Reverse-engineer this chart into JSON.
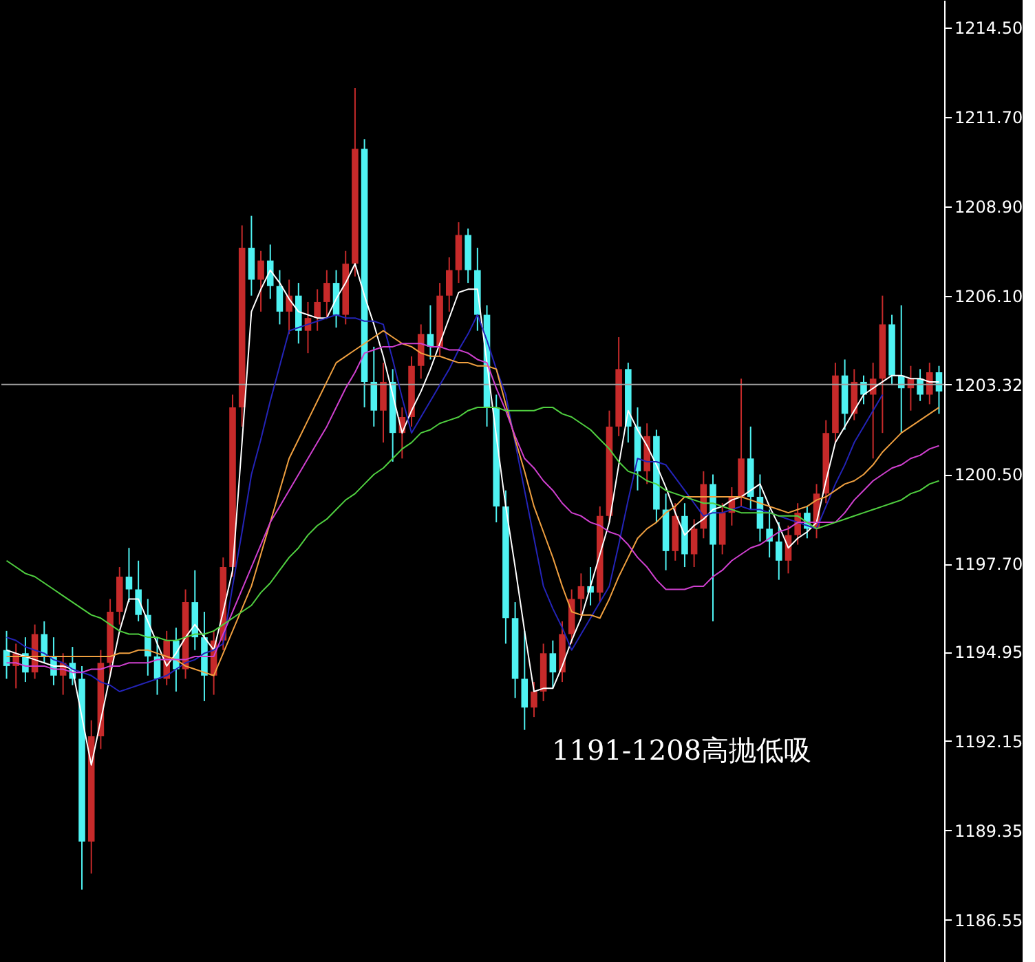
{
  "chart_data": {
    "type": "candlestick",
    "categories": [
      null,
      null,
      null,
      null,
      null,
      null,
      null,
      null,
      null,
      null,
      null,
      null,
      null,
      null,
      null,
      null,
      null,
      null,
      null,
      null,
      null,
      null,
      null,
      null,
      null,
      null,
      null,
      null,
      null,
      null,
      null,
      null,
      null,
      null,
      null,
      null,
      null,
      null,
      null,
      null,
      null,
      null,
      null,
      null,
      null,
      null,
      null,
      null,
      null,
      null,
      null,
      null,
      null,
      null,
      null,
      null,
      null,
      null,
      null,
      null,
      null,
      null,
      null,
      null,
      null,
      null,
      null,
      null,
      null,
      null,
      null,
      null,
      null,
      null,
      null,
      null,
      null,
      null,
      null,
      null,
      null,
      null,
      null,
      null,
      null,
      null,
      null,
      null,
      null,
      null,
      null,
      null,
      null,
      null,
      null,
      null,
      null,
      null,
      null,
      null
    ],
    "ohlc": [
      [
        1195.0,
        1195.6,
        1194.1,
        1194.5
      ],
      [
        1194.5,
        1195.2,
        1193.8,
        1194.9
      ],
      [
        1194.9,
        1195.4,
        1194.0,
        1194.3
      ],
      [
        1194.3,
        1195.8,
        1194.1,
        1195.5
      ],
      [
        1195.5,
        1195.9,
        1194.6,
        1194.8
      ],
      [
        1194.8,
        1195.4,
        1193.9,
        1194.2
      ],
      [
        1194.2,
        1194.9,
        1193.6,
        1194.6
      ],
      [
        1194.6,
        1195.1,
        1193.9,
        1194.1
      ],
      [
        1194.1,
        1194.5,
        1187.5,
        1189.0
      ],
      [
        1189.0,
        1192.8,
        1188.0,
        1192.3
      ],
      [
        1192.3,
        1195.0,
        1191.9,
        1194.6
      ],
      [
        1194.6,
        1196.6,
        1194.2,
        1196.2
      ],
      [
        1196.2,
        1197.6,
        1195.8,
        1197.3
      ],
      [
        1197.3,
        1198.2,
        1196.5,
        1196.9
      ],
      [
        1196.9,
        1197.8,
        1195.9,
        1196.1
      ],
      [
        1196.1,
        1196.6,
        1194.2,
        1194.8
      ],
      [
        1194.8,
        1195.4,
        1193.6,
        1194.1
      ],
      [
        1194.1,
        1195.6,
        1193.9,
        1195.3
      ],
      [
        1195.3,
        1195.7,
        1193.7,
        1194.4
      ],
      [
        1194.4,
        1196.9,
        1194.1,
        1196.5
      ],
      [
        1196.5,
        1197.5,
        1195.0,
        1195.4
      ],
      [
        1195.4,
        1196.2,
        1193.4,
        1194.2
      ],
      [
        1194.2,
        1195.6,
        1193.6,
        1195.3
      ],
      [
        1195.3,
        1197.9,
        1195.0,
        1197.6
      ],
      [
        1197.6,
        1203.0,
        1197.3,
        1202.6
      ],
      [
        1202.6,
        1208.3,
        1202.0,
        1207.6
      ],
      [
        1207.6,
        1208.6,
        1206.1,
        1206.6
      ],
      [
        1206.6,
        1207.5,
        1205.6,
        1207.2
      ],
      [
        1207.2,
        1207.7,
        1206.0,
        1206.4
      ],
      [
        1206.4,
        1206.9,
        1205.2,
        1205.6
      ],
      [
        1205.6,
        1206.6,
        1204.9,
        1206.1
      ],
      [
        1206.1,
        1206.5,
        1204.6,
        1205.0
      ],
      [
        1205.0,
        1205.9,
        1204.3,
        1205.4
      ],
      [
        1205.4,
        1206.3,
        1205.0,
        1205.9
      ],
      [
        1205.9,
        1206.9,
        1205.4,
        1206.5
      ],
      [
        1206.5,
        1206.9,
        1205.1,
        1205.5
      ],
      [
        1205.5,
        1207.5,
        1205.2,
        1207.1
      ],
      [
        1207.1,
        1212.6,
        1206.7,
        1210.7
      ],
      [
        1210.7,
        1211.0,
        1202.6,
        1203.4
      ],
      [
        1203.4,
        1204.5,
        1202.0,
        1202.5
      ],
      [
        1202.5,
        1204.0,
        1201.5,
        1203.4
      ],
      [
        1203.4,
        1203.8,
        1200.9,
        1201.8
      ],
      [
        1201.8,
        1202.6,
        1201.0,
        1202.3
      ],
      [
        1202.3,
        1204.2,
        1202.0,
        1203.9
      ],
      [
        1203.9,
        1205.2,
        1203.5,
        1204.9
      ],
      [
        1204.9,
        1205.8,
        1204.1,
        1204.5
      ],
      [
        1204.5,
        1206.5,
        1204.2,
        1206.1
      ],
      [
        1206.1,
        1207.3,
        1205.6,
        1206.9
      ],
      [
        1206.9,
        1208.4,
        1206.5,
        1208.0
      ],
      [
        1208.0,
        1208.2,
        1206.5,
        1206.9
      ],
      [
        1206.9,
        1207.6,
        1205.0,
        1205.5
      ],
      [
        1205.5,
        1205.8,
        1202.0,
        1202.6
      ],
      [
        1202.6,
        1203.0,
        1199.0,
        1199.5
      ],
      [
        1199.5,
        1200.0,
        1195.2,
        1196.0
      ],
      [
        1196.0,
        1196.5,
        1193.5,
        1194.1
      ],
      [
        1194.1,
        1195.6,
        1192.5,
        1193.2
      ],
      [
        1193.2,
        1194.0,
        1192.9,
        1193.7
      ],
      [
        1193.7,
        1195.2,
        1193.4,
        1194.9
      ],
      [
        1194.9,
        1195.3,
        1193.8,
        1194.3
      ],
      [
        1194.3,
        1195.9,
        1194.0,
        1195.5
      ],
      [
        1195.5,
        1196.9,
        1195.2,
        1196.6
      ],
      [
        1196.6,
        1197.4,
        1196.0,
        1197.0
      ],
      [
        1197.0,
        1197.6,
        1196.4,
        1196.8
      ],
      [
        1196.8,
        1199.5,
        1196.5,
        1199.2
      ],
      [
        1199.2,
        1202.5,
        1199.0,
        1202.0
      ],
      [
        1202.0,
        1204.8,
        1201.7,
        1203.8
      ],
      [
        1203.8,
        1204.0,
        1201.5,
        1202.0
      ],
      [
        1202.0,
        1202.6,
        1200.0,
        1200.6
      ],
      [
        1200.6,
        1202.1,
        1200.2,
        1201.7
      ],
      [
        1201.7,
        1201.9,
        1199.0,
        1199.4
      ],
      [
        1199.4,
        1199.9,
        1197.5,
        1198.1
      ],
      [
        1198.1,
        1199.6,
        1197.8,
        1199.2
      ],
      [
        1199.2,
        1199.6,
        1197.6,
        1198.0
      ],
      [
        1198.0,
        1199.1,
        1197.6,
        1198.8
      ],
      [
        1198.8,
        1200.6,
        1198.5,
        1200.2
      ],
      [
        1200.2,
        1200.5,
        1195.9,
        1198.3
      ],
      [
        1198.3,
        1199.6,
        1198.0,
        1199.3
      ],
      [
        1199.3,
        1200.1,
        1198.9,
        1199.8
      ],
      [
        1199.8,
        1203.5,
        1199.5,
        1201.0
      ],
      [
        1201.0,
        1202.0,
        1199.4,
        1199.8
      ],
      [
        1199.8,
        1200.5,
        1198.4,
        1198.8
      ],
      [
        1198.8,
        1199.4,
        1197.9,
        1198.4
      ],
      [
        1198.4,
        1199.0,
        1197.2,
        1197.8
      ],
      [
        1197.8,
        1198.9,
        1197.4,
        1198.6
      ],
      [
        1198.6,
        1199.6,
        1198.3,
        1199.3
      ],
      [
        1199.3,
        1199.5,
        1198.5,
        1198.8
      ],
      [
        1198.8,
        1200.2,
        1198.5,
        1199.9
      ],
      [
        1199.9,
        1202.2,
        1199.6,
        1201.8
      ],
      [
        1201.8,
        1204.0,
        1201.5,
        1203.6
      ],
      [
        1203.6,
        1204.1,
        1201.9,
        1202.4
      ],
      [
        1202.4,
        1203.8,
        1202.2,
        1203.4
      ],
      [
        1203.4,
        1203.6,
        1202.7,
        1203.0
      ],
      [
        1203.0,
        1204.0,
        1201.0,
        1203.5
      ],
      [
        1203.5,
        1206.1,
        1201.8,
        1205.2
      ],
      [
        1205.2,
        1205.5,
        1203.3,
        1203.6
      ],
      [
        1203.6,
        1205.8,
        1201.8,
        1203.2
      ],
      [
        1203.2,
        1203.9,
        1202.5,
        1203.5
      ],
      [
        1203.5,
        1203.8,
        1202.8,
        1203.0
      ],
      [
        1203.0,
        1204.0,
        1202.7,
        1203.7
      ],
      [
        1203.7,
        1203.9,
        1202.4,
        1203.1
      ]
    ],
    "colors": [
      "#4ff2f2",
      "#c62a2a",
      "#4ff2f2",
      "#c62a2a",
      "#4ff2f2",
      "#4ff2f2",
      "#c62a2a",
      "#4ff2f2",
      "#4ff2f2",
      "#c62a2a",
      "#c62a2a",
      "#c62a2a",
      "#c62a2a",
      "#4ff2f2",
      "#4ff2f2",
      "#4ff2f2",
      "#4ff2f2",
      "#c62a2a",
      "#4ff2f2",
      "#c62a2a",
      "#4ff2f2",
      "#4ff2f2",
      "#c62a2a",
      "#c62a2a",
      "#c62a2a",
      "#c62a2a",
      "#4ff2f2",
      "#c62a2a",
      "#4ff2f2",
      "#4ff2f2",
      "#c62a2a",
      "#4ff2f2",
      "#c62a2a",
      "#c62a2a",
      "#c62a2a",
      "#4ff2f2",
      "#c62a2a",
      "#c62a2a",
      "#4ff2f2",
      "#4ff2f2",
      "#c62a2a",
      "#4ff2f2",
      "#c62a2a",
      "#c62a2a",
      "#c62a2a",
      "#4ff2f2",
      "#c62a2a",
      "#c62a2a",
      "#c62a2a",
      "#4ff2f2",
      "#4ff2f2",
      "#4ff2f2",
      "#4ff2f2",
      "#4ff2f2",
      "#4ff2f2",
      "#4ff2f2",
      "#c62a2a",
      "#c62a2a",
      "#4ff2f2",
      "#c62a2a",
      "#c62a2a",
      "#c62a2a",
      "#4ff2f2",
      "#c62a2a",
      "#c62a2a",
      "#c62a2a",
      "#4ff2f2",
      "#4ff2f2",
      "#c62a2a",
      "#4ff2f2",
      "#4ff2f2",
      "#c62a2a",
      "#4ff2f2",
      "#c62a2a",
      "#c62a2a",
      "#4ff2f2",
      "#c62a2a",
      "#c62a2a",
      "#c62a2a",
      "#4ff2f2",
      "#4ff2f2",
      "#4ff2f2",
      "#4ff2f2",
      "#c62a2a",
      "#c62a2a",
      "#4ff2f2",
      "#c62a2a",
      "#c62a2a",
      "#c62a2a",
      "#4ff2f2",
      "#c62a2a",
      "#4ff2f2",
      "#c62a2a",
      "#c62a2a",
      "#4ff2f2",
      "#4ff2f2",
      "#c62a2a",
      "#4ff2f2",
      "#c62a2a",
      "#4ff2f2"
    ],
    "series": [
      {
        "type": "line",
        "color": "#ffffff",
        "values": [
          1195.0,
          1194.9,
          1194.8,
          1194.7,
          1194.6,
          1194.5,
          1194.5,
          1194.4,
          1192.9,
          1191.4,
          1192.8,
          1194.2,
          1195.6,
          1196.6,
          1196.6,
          1195.9,
          1195.2,
          1194.5,
          1194.9,
          1195.4,
          1195.8,
          1195.4,
          1195.0,
          1196.2,
          1197.5,
          1201.5,
          1205.6,
          1206.3,
          1206.9,
          1206.5,
          1206.0,
          1205.6,
          1205.5,
          1205.4,
          1205.4,
          1206.0,
          1206.5,
          1207.1,
          1206.1,
          1205.2,
          1204.2,
          1203.0,
          1201.8,
          1202.5,
          1203.1,
          1203.8,
          1204.6,
          1205.4,
          1206.2,
          1206.3,
          1206.3,
          1204.0,
          1201.7,
          1199.5,
          1197.6,
          1195.6,
          1193.7,
          1193.8,
          1193.8,
          1194.5,
          1195.3,
          1196.0,
          1197.0,
          1198.0,
          1199.0,
          1200.8,
          1202.5,
          1201.9,
          1201.4,
          1200.8,
          1200.1,
          1199.3,
          1198.6,
          1198.9,
          1199.1,
          1199.4,
          1199.5,
          1199.7,
          1199.8,
          1200.0,
          1200.2,
          1199.5,
          1198.9,
          1198.2,
          1198.5,
          1198.7,
          1199.0,
          1200.3,
          1201.5,
          1202.0,
          1202.5,
          1203.0,
          1203.2,
          1203.4,
          1203.6,
          1203.6,
          1203.5,
          1203.5,
          1203.4,
          1203.4
        ]
      },
      {
        "type": "line",
        "color": "#2424b8",
        "values": [
          1195.4,
          1195.3,
          1195.1,
          1195.0,
          1194.9,
          1194.7,
          1194.6,
          1194.4,
          1194.3,
          1194.2,
          1194.0,
          1193.9,
          1193.7,
          1193.8,
          1193.9,
          1194.0,
          1194.1,
          1194.2,
          1194.4,
          1194.6,
          1194.7,
          1194.9,
          1195.0,
          1195.2,
          1197.0,
          1198.7,
          1200.5,
          1201.6,
          1202.8,
          1203.9,
          1205.0,
          1205.1,
          1205.2,
          1205.3,
          1205.4,
          1205.5,
          1205.4,
          1205.4,
          1205.3,
          1205.3,
          1205.2,
          1204.1,
          1202.9,
          1201.8,
          1202.3,
          1202.8,
          1203.3,
          1203.8,
          1204.4,
          1204.9,
          1205.5,
          1204.7,
          1203.8,
          1203.0,
          1201.5,
          1200.0,
          1198.5,
          1197.0,
          1196.3,
          1195.7,
          1195.0,
          1195.5,
          1196.0,
          1196.5,
          1197.0,
          1198.3,
          1199.7,
          1201.0,
          1200.9,
          1200.9,
          1200.8,
          1200.4,
          1200.0,
          1199.6,
          1199.2,
          1199.3,
          1199.3,
          1199.4,
          1199.5,
          1199.4,
          1199.4,
          1199.3,
          1199.2,
          1199.1,
          1199.0,
          1198.9,
          1198.8,
          1199.5,
          1200.2,
          1200.8,
          1201.5,
          1202.0,
          1202.5,
          1203.0,
          null,
          null,
          null,
          null,
          null,
          null
        ]
      },
      {
        "type": "line",
        "color": "#f0a040",
        "values": [
          1194.8,
          1194.8,
          1194.8,
          1194.8,
          1194.8,
          1194.8,
          1194.8,
          1194.8,
          1194.8,
          1194.8,
          1194.8,
          1194.8,
          1194.9,
          1194.9,
          1195.0,
          1195.0,
          1194.9,
          1194.8,
          1194.7,
          1194.5,
          1194.4,
          1194.3,
          1194.2,
          1194.9,
          1195.6,
          1196.3,
          1197.0,
          1198.0,
          1199.0,
          1200.0,
          1201.0,
          1201.6,
          1202.2,
          1202.8,
          1203.4,
          1204.0,
          1204.2,
          1204.4,
          1204.6,
          1204.8,
          1205.0,
          1204.8,
          1204.6,
          1204.5,
          1204.3,
          1204.2,
          1204.2,
          1204.1,
          1204.0,
          1204.0,
          1203.9,
          1203.9,
          1203.8,
          1202.7,
          1201.6,
          1200.6,
          1199.5,
          1198.7,
          1197.9,
          1197.0,
          1196.2,
          1196.1,
          1196.1,
          1196.0,
          1196.6,
          1197.3,
          1197.9,
          1198.5,
          1198.8,
          1199.0,
          1199.3,
          1199.5,
          1199.8,
          1199.8,
          1199.8,
          1199.8,
          1199.8,
          1199.8,
          1199.8,
          1199.7,
          1199.6,
          1199.5,
          1199.4,
          1199.3,
          1199.4,
          1199.5,
          1199.7,
          1199.8,
          1200.0,
          1200.2,
          1200.3,
          1200.5,
          1200.8,
          1201.2,
          1201.5,
          1201.8,
          1202.0,
          1202.2,
          1202.4,
          1202.6
        ]
      },
      {
        "type": "line",
        "color": "#d040d0",
        "values": [
          1194.6,
          1194.6,
          1194.5,
          1194.5,
          1194.5,
          1194.4,
          1194.4,
          1194.3,
          1194.3,
          1194.4,
          1194.4,
          1194.5,
          1194.5,
          1194.6,
          1194.6,
          1194.6,
          1194.7,
          1194.7,
          1194.7,
          1194.7,
          1194.8,
          1194.8,
          1194.8,
          1195.5,
          1196.2,
          1196.9,
          1197.6,
          1198.3,
          1199.0,
          1199.5,
          1200.0,
          1200.5,
          1201.0,
          1201.5,
          1202.0,
          1202.6,
          1203.2,
          1203.7,
          1204.3,
          1204.4,
          1204.5,
          1204.5,
          1204.6,
          1204.6,
          1204.6,
          1204.5,
          1204.5,
          1204.4,
          1204.4,
          1204.3,
          1204.1,
          1204.0,
          1203.2,
          1202.5,
          1201.7,
          1201.0,
          1200.7,
          1200.3,
          1200.0,
          1199.6,
          1199.3,
          1199.2,
          1199.0,
          1198.9,
          1198.7,
          1198.6,
          1198.3,
          1197.9,
          1197.6,
          1197.2,
          1196.9,
          1196.9,
          1196.9,
          1197.0,
          1197.0,
          1197.3,
          1197.5,
          1197.8,
          1198.0,
          1198.2,
          1198.3,
          1198.5,
          1198.7,
          1198.8,
          1199.0,
          1199.0,
          1199.0,
          1199.0,
          1199.0,
          1199.3,
          1199.7,
          1200.0,
          1200.3,
          1200.5,
          1200.7,
          1200.8,
          1201.0,
          1201.1,
          1201.3,
          1201.4
        ]
      },
      {
        "type": "line",
        "color": "#50d040",
        "values": [
          1197.8,
          1197.6,
          1197.4,
          1197.3,
          1197.1,
          1196.9,
          1196.7,
          1196.5,
          1196.3,
          1196.1,
          1196.0,
          1195.8,
          1195.6,
          1195.5,
          1195.5,
          1195.4,
          1195.4,
          1195.3,
          1195.3,
          1195.4,
          1195.5,
          1195.5,
          1195.6,
          1195.8,
          1196.0,
          1196.2,
          1196.4,
          1196.8,
          1197.1,
          1197.5,
          1197.9,
          1198.2,
          1198.6,
          1198.9,
          1199.1,
          1199.4,
          1199.7,
          1199.9,
          1200.2,
          1200.5,
          1200.7,
          1201.0,
          1201.3,
          1201.5,
          1201.8,
          1201.9,
          1202.1,
          1202.2,
          1202.3,
          1202.5,
          1202.6,
          1202.6,
          1202.6,
          1202.5,
          1202.5,
          1202.5,
          1202.5,
          1202.6,
          1202.6,
          1202.4,
          1202.3,
          1202.1,
          1201.9,
          1201.6,
          1201.3,
          1200.9,
          1200.6,
          1200.5,
          1200.3,
          1200.2,
          1200.0,
          1199.9,
          1199.8,
          1199.7,
          1199.6,
          1199.6,
          1199.5,
          1199.4,
          1199.3,
          1199.3,
          1199.3,
          1199.3,
          1199.2,
          1199.2,
          1199.2,
          1199.0,
          1198.8,
          1198.9,
          1199.0,
          1199.1,
          1199.2,
          1199.3,
          1199.4,
          1199.5,
          1199.6,
          1199.7,
          1199.9,
          1200.0,
          1200.2,
          1200.3
        ]
      }
    ],
    "ylim": [
      1185.23,
      1215.36
    ],
    "yticks": [
      1186.55,
      1189.35,
      1192.15,
      1194.95,
      {
        "value": 1197.7,
        "label": "1197.70"
      },
      {
        "value": 1200.5,
        "label": "1200.50"
      },
      1203.32,
      {
        "value": 1206.1,
        "label": "1206.10"
      },
      {
        "value": 1208.9,
        "label": "1208.90"
      },
      {
        "value": 1211.7,
        "label": "1211.70"
      },
      {
        "value": 1214.5,
        "label": "1214.50"
      }
    ],
    "ref_lines": [
      {
        "axis": "y",
        "value": 1203.32,
        "color": "#a0a0a0"
      }
    ],
    "annotations": [
      "1191-1208高抛低吸"
    ],
    "grid": false
  }
}
